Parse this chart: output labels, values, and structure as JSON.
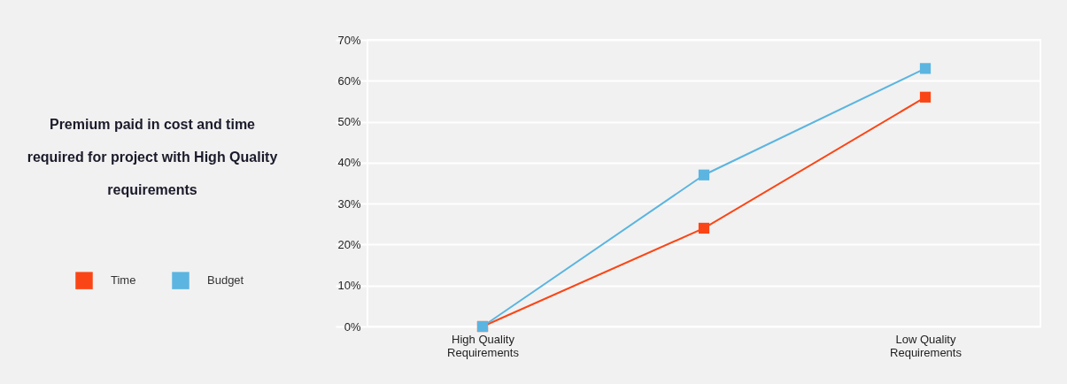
{
  "chart_data": {
    "type": "line",
    "title": "Premium paid in cost and time required for project with High Quality requirements",
    "categories": [
      "High Quality Requirements",
      null,
      "Low Quality Requirements"
    ],
    "series": [
      {
        "name": "Time",
        "color": "#fa4616",
        "values": [
          0,
          24,
          56
        ]
      },
      {
        "name": "Budget",
        "color": "#5bb5e0",
        "values": [
          0,
          37,
          63
        ]
      }
    ],
    "ylim": [
      0,
      70
    ],
    "yticks": [
      {
        "value": 0,
        "label": "0%"
      },
      {
        "value": 10,
        "label": "10%"
      },
      {
        "value": 20,
        "label": "20%"
      },
      {
        "value": 30,
        "label": "30%"
      },
      {
        "value": 40,
        "label": "40%"
      },
      {
        "value": 50,
        "label": "50%"
      },
      {
        "value": 60,
        "label": "60%"
      },
      {
        "value": 70,
        "label": "70%"
      }
    ],
    "grid": "y",
    "legend": "left",
    "marker": "square",
    "line_style": "solid"
  }
}
